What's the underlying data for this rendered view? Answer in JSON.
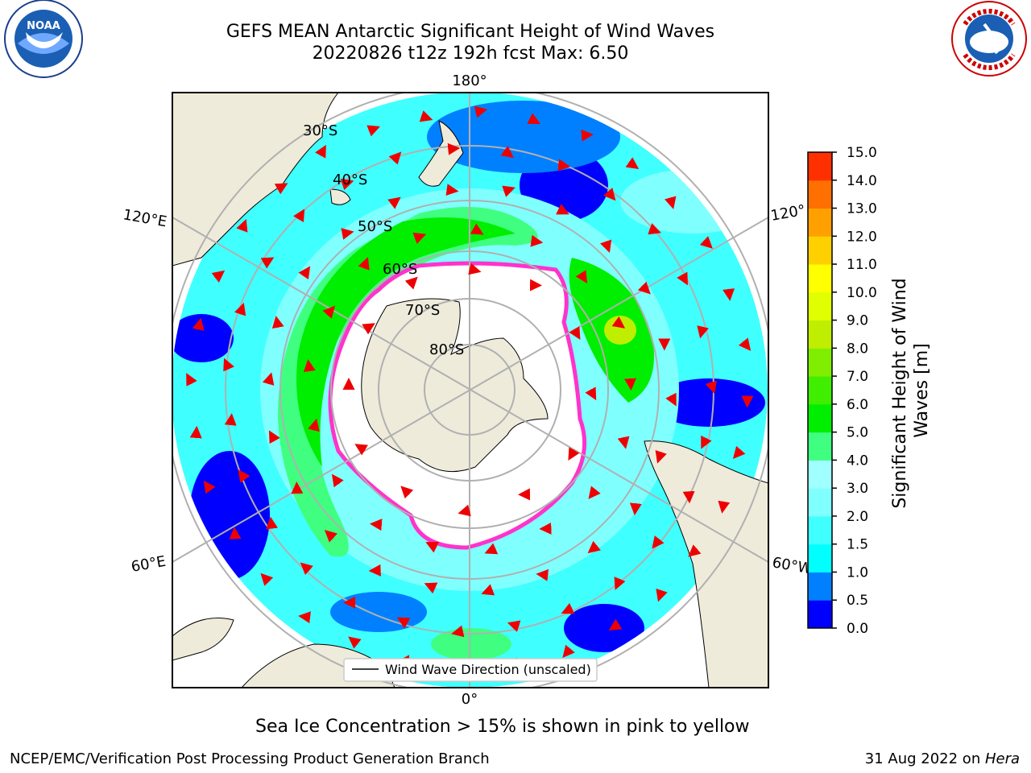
{
  "header": {
    "title_line1": "GEFS MEAN Antarctic Significant Height of Wind Waves",
    "title_line2": "20220826 t12z 192h fcst   Max: 6.50"
  },
  "logos": {
    "left": {
      "icon": "noaa-logo-icon",
      "text": "NOAA"
    },
    "right": {
      "icon": "national-weather-service-logo-icon",
      "text": "NATIONAL WEATHER SERVICE"
    }
  },
  "map": {
    "projection": "south-polar-stereographic",
    "latitude_labels": [
      "30°S",
      "40°S",
      "50°S",
      "60°S",
      "70°S",
      "80°S"
    ],
    "longitude_labels": {
      "top": "180°",
      "bottom": "0°",
      "upper_left": "120°E",
      "lower_left": "60°E",
      "upper_right": "120°",
      "lower_right": "60°W"
    },
    "legend_label": "Wind Wave Direction (unscaled)",
    "colors": {
      "land": "#eeebdb",
      "ice_free_background": "#ffffff",
      "low_waves": "#0000ff",
      "mid_waves": "#00ffff",
      "high_waves": "#00dd00",
      "sea_ice": "#ff33cc",
      "arrows": "#ee0000"
    }
  },
  "colorbar": {
    "label": "Significant Height of Wind Waves [m]",
    "ticks": [
      "0.0",
      "0.5",
      "1.0",
      "1.5",
      "2.0",
      "3.0",
      "4.0",
      "5.0",
      "6.0",
      "7.0",
      "8.0",
      "9.0",
      "10.0",
      "11.0",
      "12.0",
      "13.0",
      "14.0",
      "15.0"
    ],
    "colors": [
      "#0000ff",
      "#0080ff",
      "#00ffff",
      "#40ffff",
      "#80ffff",
      "#a0ffff",
      "#40ff80",
      "#00ee00",
      "#40ee00",
      "#80ee00",
      "#c0ee00",
      "#e0ff00",
      "#ffff00",
      "#ffd000",
      "#ffa000",
      "#ff7000",
      "#ff3000",
      "#ff0000"
    ]
  },
  "captions": {
    "sea_ice": "Sea Ice Concentration > 15% is shown in pink to yellow",
    "footer_left": "NCEP/EMC/Verification Post Processing Product Generation Branch",
    "footer_right_date": "31 Aug 2022 on ",
    "footer_right_machine": "Hera"
  }
}
